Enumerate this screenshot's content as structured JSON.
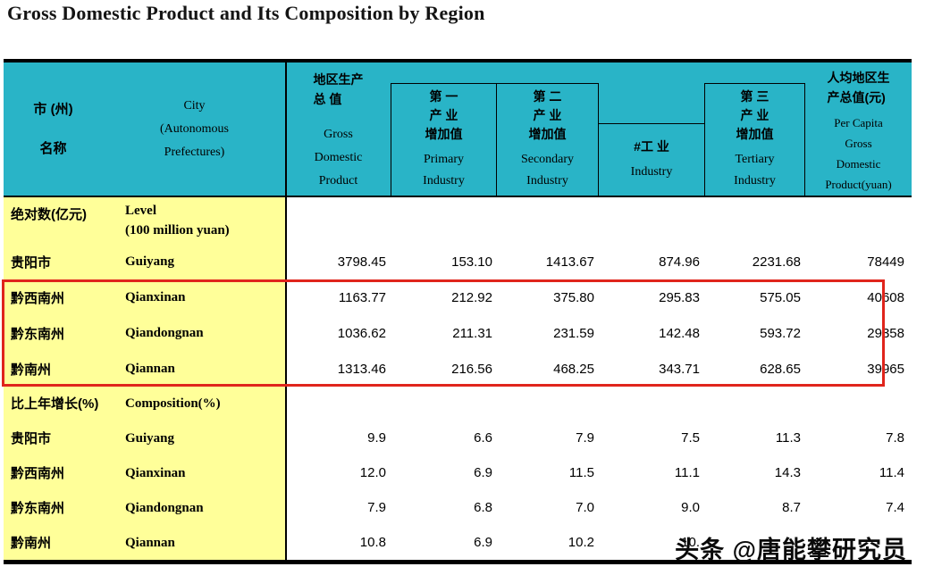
{
  "title": "Gross Domestic Product and Its Composition by Region",
  "watermark": "头条 @唐能攀研究员",
  "colors": {
    "header_bg": "#29b4c7",
    "label_bg": "#ffff99",
    "highlight_border": "#e0251c"
  },
  "table": {
    "header": {
      "region": {
        "zh": [
          "市 (州)",
          "名称"
        ]
      },
      "city": {
        "en": [
          "City",
          "(Autonomous",
          "Prefectures)"
        ]
      },
      "gdp": {
        "zh": [
          "地区生产",
          "总 值"
        ],
        "en": [
          "Gross",
          "Domestic",
          "Product"
        ]
      },
      "primary": {
        "zh": [
          "第 一",
          "产 业",
          "增加值"
        ],
        "en": [
          "Primary",
          "Industry"
        ]
      },
      "secondary": {
        "zh": [
          "第 二",
          "产 业",
          "增加值"
        ],
        "en": [
          "Secondary",
          "Industry"
        ]
      },
      "industry": {
        "zh": [
          "#工 业"
        ],
        "en": [
          "Industry"
        ]
      },
      "tertiary": {
        "zh": [
          "第 三",
          "产 业",
          "增加值"
        ],
        "en": [
          "Tertiary",
          "Industry"
        ]
      },
      "per_capita": {
        "zh": [
          "人均地区生",
          "产总值(元)"
        ],
        "en": [
          "Per Capita",
          "Gross",
          "Domestic",
          "Product(yuan)"
        ]
      }
    },
    "sections": [
      {
        "label_zh": "绝对数(亿元)",
        "label_en": [
          "Level",
          "(100 million yuan)"
        ],
        "rows": [
          {
            "zh": "贵阳市",
            "en": "Guiyang",
            "highlight": false,
            "values": [
              "3798.45",
              "153.10",
              "1413.67",
              "874.96",
              "2231.68",
              "78449"
            ]
          },
          {
            "zh": "黔西南州",
            "en": "Qianxinan",
            "highlight": true,
            "values": [
              "1163.77",
              "212.92",
              "375.80",
              "295.83",
              "575.05",
              "40608"
            ]
          },
          {
            "zh": "黔东南州",
            "en": "Qiandongnan",
            "highlight": true,
            "values": [
              "1036.62",
              "211.31",
              "231.59",
              "142.48",
              "593.72",
              "29358"
            ]
          },
          {
            "zh": "黔南州",
            "en": "Qiannan",
            "highlight": true,
            "values": [
              "1313.46",
              "216.56",
              "468.25",
              "343.71",
              "628.65",
              "39965"
            ]
          }
        ]
      },
      {
        "label_zh": "比上年增长(%)",
        "label_en": [
          "Composition(%)"
        ],
        "rows": [
          {
            "zh": "贵阳市",
            "en": "Guiyang",
            "highlight": false,
            "values": [
              "9.9",
              "6.6",
              "7.9",
              "7.5",
              "11.3",
              "7.8"
            ]
          },
          {
            "zh": "黔西南州",
            "en": "Qianxinan",
            "highlight": false,
            "values": [
              "12.0",
              "6.9",
              "11.5",
              "11.1",
              "14.3",
              "11.4"
            ]
          },
          {
            "zh": "黔东南州",
            "en": "Qiandongnan",
            "highlight": false,
            "values": [
              "7.9",
              "6.8",
              "7.0",
              "9.0",
              "8.7",
              "7.4"
            ]
          },
          {
            "zh": "黔南州",
            "en": "Qiannan",
            "highlight": false,
            "values": [
              "10.8",
              "6.9",
              "10.2",
              "10.",
              "",
              ""
            ]
          }
        ]
      }
    ]
  }
}
